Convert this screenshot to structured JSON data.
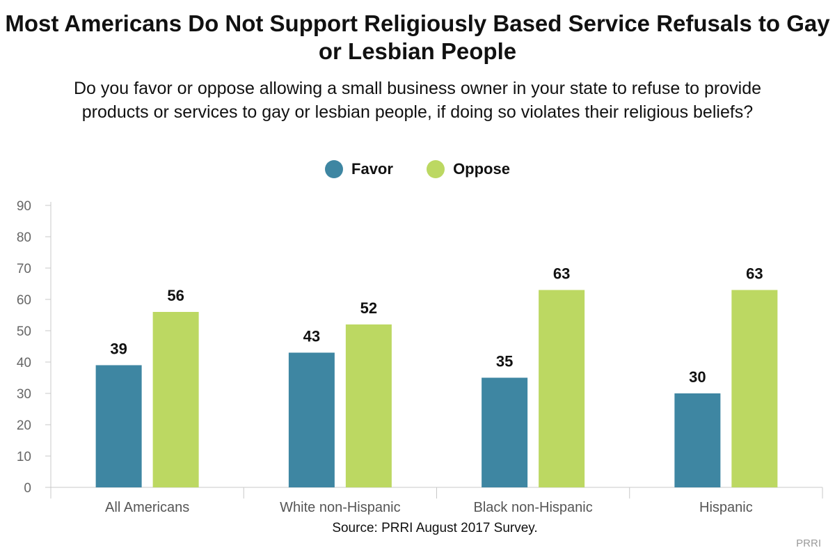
{
  "chart_data": {
    "type": "bar",
    "title": "Most Americans Do Not Support Religiously Based Service Refusals to Gay or Lesbian People",
    "subtitle": "Do you favor or oppose allowing a small business owner in your state to refuse to provide products or services to gay or lesbian people, if doing so violates their religious beliefs?",
    "categories": [
      "All Americans",
      "White non-Hispanic",
      "Black non-Hispanic",
      "Hispanic"
    ],
    "series": [
      {
        "name": "Favor",
        "color": "#3e86a2",
        "values": [
          39,
          43,
          35,
          30
        ]
      },
      {
        "name": "Oppose",
        "color": "#bcd862",
        "values": [
          56,
          52,
          63,
          63
        ]
      }
    ],
    "data_labels": {
      "Favor": [
        "39",
        "43",
        "35",
        "30"
      ],
      "Oppose": [
        "56",
        "52",
        "63",
        "63"
      ]
    },
    "ylim": [
      0,
      90
    ],
    "yticks": [
      0,
      10,
      20,
      30,
      40,
      50,
      60,
      70,
      80,
      90
    ],
    "xlabel": "",
    "ylabel": "",
    "legend_position": "top-center",
    "grid": false,
    "source": "Source: PRRI August 2017 Survey.",
    "brand": "PRRI"
  }
}
